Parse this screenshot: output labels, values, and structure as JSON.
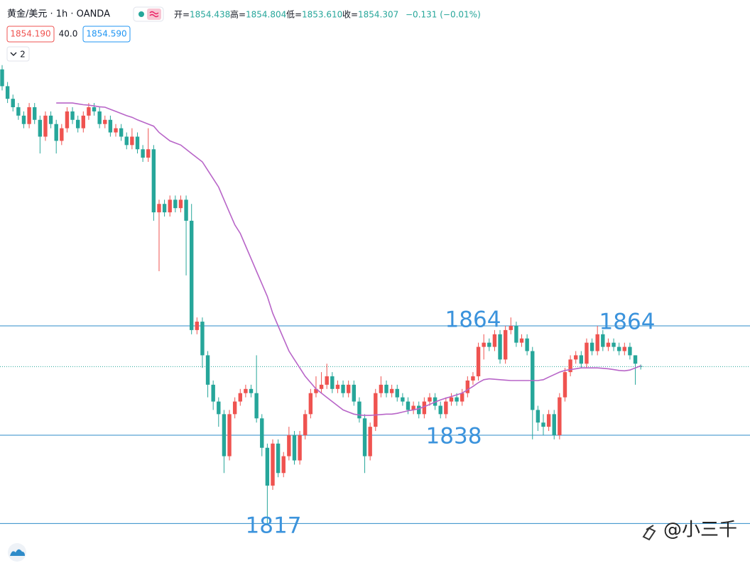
{
  "chart_data": {
    "type": "candlestick",
    "symbol": "黄金/美元 · 1h · OANDA",
    "ohlc_header": [
      {
        "label": "开=",
        "value": "1854.438"
      },
      {
        "label": "高=",
        "value": "1854.804"
      },
      {
        "label": "低=",
        "value": "1853.610"
      },
      {
        "label": "收=",
        "value": "1854.307"
      }
    ],
    "change": "−0.131 (−0.01%)",
    "bid": "1854.190",
    "spread": "40.0",
    "ask": "1854.590",
    "indicator_count": "2",
    "up_color": "#ef5350",
    "down_color": "#26a69a",
    "ma_color": "#b865c8",
    "level_color": "#2e8bc9",
    "ylim": [
      1807.6,
      1941.5
    ],
    "open": [
      1925,
      1921,
      1918,
      1916,
      1914,
      1912,
      1916,
      1913,
      1909,
      1914,
      1912,
      1908,
      1911,
      1915,
      1913,
      1911,
      1914,
      1916,
      1915,
      1912,
      1913,
      1910,
      1911,
      1909,
      1907,
      1909,
      1906,
      1904,
      1906,
      1891,
      1893,
      1891,
      1894,
      1892,
      1894,
      1889,
      1863,
      1865,
      1857,
      1850,
      1846,
      1843,
      1833,
      1843,
      1846,
      1848,
      1849,
      1848,
      1842,
      1835,
      1826,
      1836,
      1829,
      1833,
      1838,
      1832,
      1838,
      1843,
      1848,
      1849,
      1850,
      1852,
      1849,
      1850,
      1848,
      1850,
      1846,
      1842,
      1833,
      1840,
      1848,
      1850,
      1848,
      1849,
      1847,
      1846,
      1844,
      1845,
      1843,
      1846,
      1847,
      1845,
      1843,
      1846,
      1847,
      1846,
      1848,
      1851,
      1852,
      1859,
      1860,
      1859,
      1862,
      1856,
      1863,
      1864,
      1860,
      1861,
      1858,
      1844,
      1841,
      1840,
      1843,
      1838,
      1847,
      1853,
      1856,
      1857,
      1855,
      1860,
      1858,
      1862,
      1859,
      1860,
      1859,
      1858,
      1859,
      1857,
      1854.438
    ],
    "high": [
      1926,
      1922,
      1919,
      1917,
      1915,
      1917,
      1917,
      1914,
      1915,
      1915,
      1913,
      1912,
      1916,
      1916,
      1914,
      1915,
      1917,
      1917,
      1916,
      1914,
      1914,
      1912,
      1912,
      1910,
      1911,
      1910,
      1907,
      1911,
      1907,
      1894,
      1894,
      1895,
      1895,
      1895,
      1895,
      1893,
      1866,
      1866,
      1858,
      1851,
      1847,
      1844,
      1844,
      1847,
      1849,
      1850,
      1850,
      1857,
      1843,
      1836,
      1837,
      1837,
      1834,
      1840,
      1839,
      1839,
      1844,
      1849,
      1852,
      1853,
      1855,
      1853,
      1851,
      1851,
      1851,
      1851,
      1847,
      1843,
      1841,
      1849,
      1852,
      1851,
      1850,
      1850,
      1848,
      1847,
      1846,
      1846,
      1847,
      1848,
      1848,
      1846,
      1847,
      1848,
      1848,
      1849,
      1852,
      1853,
      1860,
      1862,
      1861,
      1863,
      1863,
      1864,
      1866,
      1865,
      1862,
      1862,
      1859,
      1845,
      1843,
      1844,
      1844,
      1848,
      1854,
      1857,
      1858,
      1858,
      1861,
      1861,
      1864,
      1863,
      1861,
      1861,
      1860,
      1860,
      1860,
      1857,
      1854.804
    ],
    "low": [
      1920,
      1917,
      1915,
      1913,
      1911,
      1911,
      1912,
      1905,
      1908,
      1911,
      1905,
      1907,
      1910,
      1912,
      1910,
      1910,
      1913,
      1914,
      1911,
      1911,
      1909,
      1909,
      1908,
      1906,
      1906,
      1905,
      1903,
      1903,
      1889,
      1877,
      1890,
      1890,
      1891,
      1891,
      1876,
      1862,
      1862,
      1854,
      1847,
      1844,
      1840,
      1829,
      1832,
      1842,
      1845,
      1847,
      1847,
      1841,
      1833,
      1817,
      1825,
      1828,
      1828,
      1832,
      1831,
      1831,
      1837,
      1842,
      1847,
      1848,
      1849,
      1848,
      1848,
      1847,
      1847,
      1845,
      1841,
      1829,
      1832,
      1839,
      1847,
      1847,
      1847,
      1846,
      1845,
      1843,
      1843,
      1842,
      1842,
      1845,
      1844,
      1842,
      1842,
      1845,
      1845,
      1845,
      1847,
      1850,
      1851,
      1856,
      1858,
      1858,
      1855,
      1855,
      1862,
      1859,
      1859,
      1857,
      1837,
      1839,
      1838,
      1839,
      1837,
      1837,
      1846,
      1852,
      1855,
      1854,
      1854,
      1857,
      1857,
      1858,
      1858,
      1858,
      1857,
      1857,
      1856,
      1850,
      1853.61
    ],
    "close": [
      1921,
      1918,
      1916,
      1914,
      1912,
      1916,
      1913,
      1909,
      1914,
      1912,
      1908,
      1911,
      1915,
      1913,
      1911,
      1914,
      1916,
      1915,
      1912,
      1913,
      1910,
      1911,
      1909,
      1907,
      1909,
      1906,
      1904,
      1906,
      1891,
      1893,
      1891,
      1894,
      1892,
      1894,
      1889,
      1863,
      1865,
      1857,
      1850,
      1846,
      1843,
      1833,
      1843,
      1846,
      1848,
      1849,
      1848,
      1842,
      1835,
      1826,
      1836,
      1829,
      1833,
      1838,
      1832,
      1838,
      1843,
      1848,
      1849,
      1850,
      1852,
      1849,
      1850,
      1848,
      1850,
      1846,
      1842,
      1833,
      1840,
      1848,
      1850,
      1848,
      1849,
      1847,
      1846,
      1844,
      1845,
      1843,
      1846,
      1847,
      1845,
      1843,
      1846,
      1847,
      1846,
      1848,
      1851,
      1852,
      1859,
      1860,
      1859,
      1862,
      1856,
      1863,
      1864,
      1860,
      1861,
      1858,
      1844,
      1841,
      1840,
      1843,
      1838,
      1847,
      1853,
      1856,
      1857,
      1855,
      1860,
      1858,
      1862,
      1859,
      1860,
      1859,
      1858,
      1859,
      1857,
      1855,
      1854.307
    ],
    "ma": [
      null,
      null,
      null,
      null,
      null,
      null,
      null,
      null,
      null,
      null,
      1917,
      1917,
      1917,
      1917,
      1916.8,
      1916.6,
      1916.5,
      1916.3,
      1916.1,
      1916,
      1915.5,
      1915,
      1914.5,
      1914,
      1913.6,
      1913,
      1912.5,
      1912,
      1911.5,
      1910,
      1909,
      1908,
      1907.5,
      1907,
      1906,
      1905,
      1904,
      1903,
      1901,
      1899,
      1897,
      1894,
      1891,
      1888,
      1886,
      1883,
      1880,
      1877,
      1874,
      1871,
      1867,
      1864,
      1861,
      1858,
      1856,
      1854,
      1852,
      1850.5,
      1849,
      1848,
      1847,
      1846,
      1845,
      1844,
      1843.5,
      1843,
      1842.8,
      1842.7,
      1842.7,
      1842.8,
      1842.9,
      1843,
      1843,
      1843.2,
      1843.5,
      1843.8,
      1844,
      1844.3,
      1844.8,
      1845.3,
      1845.9,
      1846.4,
      1846.8,
      1847.2,
      1847.6,
      1848,
      1848.8,
      1849.6,
      1850.5,
      1851.2,
      1851.4,
      1851.3,
      1851.2,
      1851.1,
      1851,
      1851,
      1851,
      1851,
      1851,
      1851,
      1851.2,
      1851.8,
      1852.4,
      1853,
      1853.4,
      1853.6,
      1853.8,
      1854,
      1854,
      1854,
      1854,
      1853.9,
      1853.8,
      1853.6,
      1853.4,
      1853.3,
      1853.5,
      1854,
      1854.5
    ],
    "levels": [
      1864,
      1838,
      1817
    ],
    "annotations": [
      "1864",
      "1864",
      "1838",
      "1817"
    ],
    "watermark": "@小三千"
  }
}
